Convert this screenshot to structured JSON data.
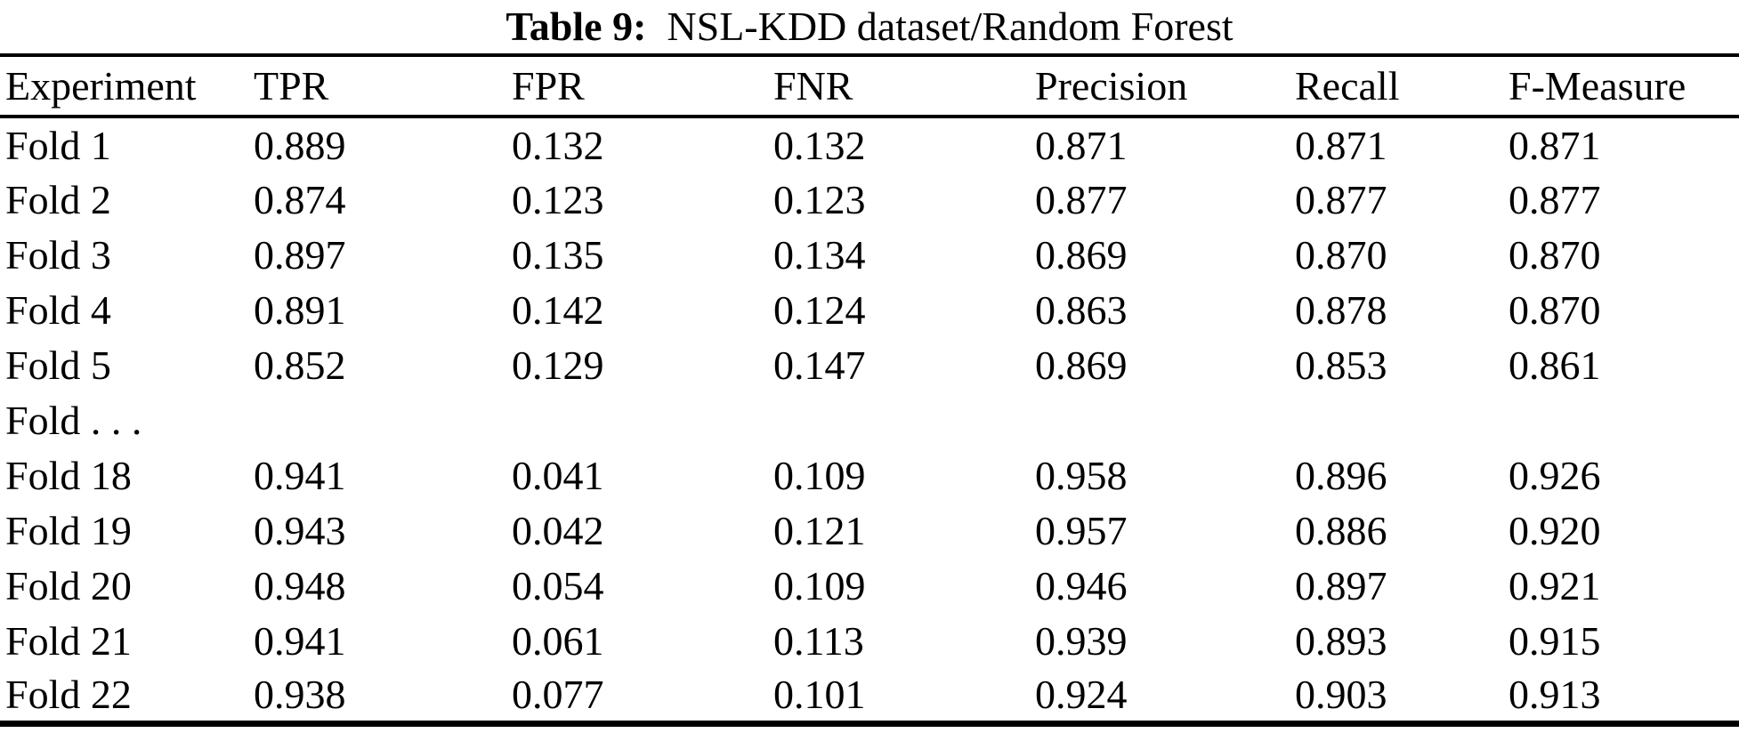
{
  "caption": {
    "label": "Table 9:",
    "text": "NSL-KDD dataset/Random Forest"
  },
  "table": {
    "columns": [
      "Experiment",
      "TPR",
      "FPR",
      "FNR",
      "Precision",
      "Recall",
      "F-Measure"
    ],
    "rows": [
      [
        "Fold 1",
        "0.889",
        "0.132",
        "0.132",
        "0.871",
        "0.871",
        "0.871"
      ],
      [
        "Fold 2",
        "0.874",
        "0.123",
        "0.123",
        "0.877",
        "0.877",
        "0.877"
      ],
      [
        "Fold 3",
        "0.897",
        "0.135",
        "0.134",
        "0.869",
        "0.870",
        "0.870"
      ],
      [
        "Fold 4",
        "0.891",
        "0.142",
        "0.124",
        "0.863",
        "0.878",
        "0.870"
      ],
      [
        "Fold 5",
        "0.852",
        "0.129",
        "0.147",
        "0.869",
        "0.853",
        "0.861"
      ],
      [
        "Fold . . .",
        "",
        "",
        "",
        "",
        "",
        ""
      ],
      [
        "Fold 18",
        "0.941",
        "0.041",
        "0.109",
        "0.958",
        "0.896",
        "0.926"
      ],
      [
        "Fold 19",
        "0.943",
        "0.042",
        "0.121",
        "0.957",
        "0.886",
        "0.920"
      ],
      [
        "Fold 20",
        "0.948",
        "0.054",
        "0.109",
        "0.946",
        "0.897",
        "0.921"
      ],
      [
        "Fold 21",
        "0.941",
        "0.061",
        "0.113",
        "0.939",
        "0.893",
        "0.915"
      ],
      [
        "Fold 22",
        "0.938",
        "0.077",
        "0.101",
        "0.924",
        "0.903",
        "0.913"
      ]
    ]
  },
  "colors": {
    "text": "#000000",
    "background": "#ffffff",
    "rule": "#000000"
  }
}
